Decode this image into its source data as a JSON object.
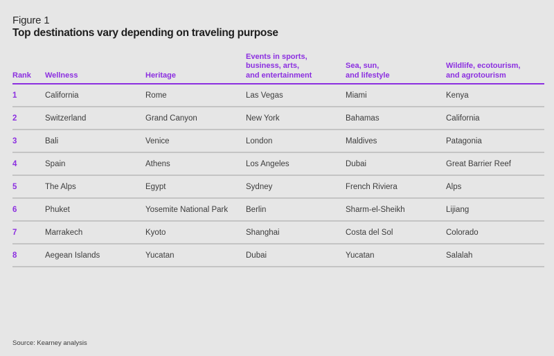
{
  "figure": {
    "label": "Figure 1",
    "title": "Top destinations vary depending on traveling purpose",
    "accent_color": "#8c2fe0"
  },
  "table": {
    "headers": [
      "Rank",
      "Wellness",
      "Heritage",
      "Events in sports,\nbusiness, arts,\nand entertainment",
      "Sea, sun,\nand lifestyle",
      "Wildlife, ecotourism,\nand agrotourism"
    ],
    "rows": [
      [
        "1",
        "California",
        "Rome",
        "Las Vegas",
        "Miami",
        "Kenya"
      ],
      [
        "2",
        "Switzerland",
        "Grand Canyon",
        "New York",
        "Bahamas",
        "California"
      ],
      [
        "3",
        "Bali",
        "Venice",
        "London",
        "Maldives",
        "Patagonia"
      ],
      [
        "4",
        "Spain",
        "Athens",
        "Los Angeles",
        "Dubai",
        "Great Barrier Reef"
      ],
      [
        "5",
        "The Alps",
        "Egypt",
        "Sydney",
        "French Riviera",
        "Alps"
      ],
      [
        "6",
        "Phuket",
        "Yosemite National Park",
        "Berlin",
        "Sharm-el-Sheikh",
        "Lijiang"
      ],
      [
        "7",
        "Marrakech",
        "Kyoto",
        "Shanghai",
        "Costa del Sol",
        "Colorado"
      ],
      [
        "8",
        "Aegean Islands",
        "Yucatan",
        "Dubai",
        "Yucatan",
        "Salalah"
      ]
    ]
  },
  "source": "Source: Kearney analysis"
}
